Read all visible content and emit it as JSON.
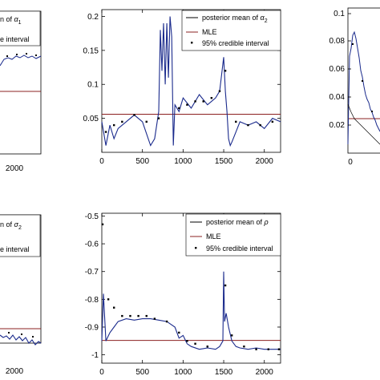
{
  "chart_data": [
    {
      "type": "line",
      "panel": "top-left (cropped)",
      "x_ticks": [
        "2000"
      ],
      "legend_location": "top-right",
      "legend": [
        {
          "label": "posterior mean of α1",
          "label_prefix": "n of ",
          "symbol": "α",
          "subscript": "1",
          "style": "line",
          "color": "#000000"
        },
        {
          "label": "MLE",
          "label_prefix": "",
          "symbol": "",
          "subscript": "",
          "style": "line",
          "color": "#8b2020"
        },
        {
          "label": "95% credible interval",
          "label_prefix": "e interval",
          "symbol": "",
          "subscript": "",
          "style": "marker",
          "color": "#000000"
        }
      ]
    },
    {
      "type": "line",
      "panel": "top-center",
      "xlim": [
        0,
        2200
      ],
      "ylim": [
        0,
        0.21
      ],
      "x_ticks": [
        "0",
        "500",
        "1000",
        "1500",
        "2000"
      ],
      "y_ticks": [
        "0.05",
        "0.1",
        "0.15",
        "0.2"
      ],
      "legend_location": "top-right",
      "legend": [
        {
          "label": "posterior mean of α2",
          "label_prefix": "posterior mean of ",
          "symbol": "α",
          "subscript": "2",
          "style": "line",
          "color": "#000000"
        },
        {
          "label": "MLE",
          "label_prefix": "MLE",
          "symbol": "",
          "subscript": "",
          "style": "line",
          "color": "#8b2020"
        },
        {
          "label": "95% credible interval",
          "label_prefix": "95% credible interval",
          "symbol": "",
          "subscript": "",
          "style": "marker",
          "color": "#000000"
        }
      ],
      "series": [
        {
          "name": "posterior mean of α2",
          "color": "#1a2a8c",
          "x": [
            0,
            50,
            100,
            150,
            200,
            300,
            400,
            500,
            600,
            650,
            700,
            720,
            740,
            760,
            780,
            800,
            820,
            840,
            860,
            880,
            900,
            950,
            1000,
            1100,
            1200,
            1300,
            1400,
            1450,
            1480,
            1500,
            1520,
            1540,
            1560,
            1580,
            1600,
            1650,
            1700,
            1800,
            1900,
            2000,
            2100,
            2200
          ],
          "y": [
            0.045,
            0.01,
            0.04,
            0.02,
            0.035,
            0.045,
            0.055,
            0.045,
            0.01,
            0.02,
            0.06,
            0.18,
            0.12,
            0.19,
            0.1,
            0.19,
            0.11,
            0.2,
            0.17,
            0.01,
            0.07,
            0.06,
            0.08,
            0.065,
            0.085,
            0.07,
            0.08,
            0.09,
            0.12,
            0.14,
            0.09,
            0.06,
            0.02,
            0.01,
            0.015,
            0.03,
            0.045,
            0.04,
            0.045,
            0.035,
            0.05,
            0.045
          ]
        },
        {
          "name": "MLE",
          "color": "#8b2020",
          "x": [
            0,
            2200
          ],
          "y": [
            0.056,
            0.056
          ]
        }
      ],
      "intervals_x": [
        50,
        150,
        250,
        400,
        550,
        700,
        950,
        1050,
        1150,
        1250,
        1350,
        1450,
        1520,
        1650,
        1800,
        1950,
        2100
      ],
      "intervals_y": [
        0.03,
        0.04,
        0.045,
        0.055,
        0.045,
        0.05,
        0.065,
        0.07,
        0.075,
        0.075,
        0.08,
        0.09,
        0.12,
        0.045,
        0.04,
        0.04,
        0.045
      ]
    },
    {
      "type": "line",
      "panel": "top-right (cropped)",
      "y_ticks": [
        "0.02",
        "0.04",
        "0.06",
        "0.08",
        "0.1"
      ],
      "x_ticks": [
        "0"
      ]
    },
    {
      "type": "line",
      "panel": "bottom-left (cropped)",
      "x_ticks": [
        "2000"
      ],
      "legend_location": "top-right",
      "legend": [
        {
          "label": "posterior mean of σ2",
          "label_prefix": "n of ",
          "symbol": "σ",
          "subscript": "2",
          "style": "line",
          "color": "#000000"
        },
        {
          "label": "MLE",
          "label_prefix": "",
          "symbol": "",
          "subscript": "",
          "style": "line",
          "color": "#8b2020"
        },
        {
          "label": "95% credible interval",
          "label_prefix": "e interval",
          "symbol": "",
          "subscript": "",
          "style": "marker",
          "color": "#000000"
        }
      ]
    },
    {
      "type": "line",
      "panel": "bottom-center",
      "xlim": [
        0,
        2200
      ],
      "ylim": [
        -1.03,
        -0.49
      ],
      "x_ticks": [
        "0",
        "500",
        "1000",
        "1500",
        "2000"
      ],
      "y_ticks": [
        "-0.5",
        "-0.6",
        "-0.7",
        "-0.8",
        "-0.9",
        "-1"
      ],
      "legend_location": "top-right",
      "legend": [
        {
          "label": "posterior mean of ρ",
          "label_prefix": "posterior mean of ",
          "symbol": "ρ",
          "subscript": "",
          "style": "line",
          "color": "#000000"
        },
        {
          "label": "MLE",
          "label_prefix": "MLE",
          "symbol": "",
          "subscript": "",
          "style": "line",
          "color": "#8b2020"
        },
        {
          "label": "95% credible interval",
          "label_prefix": "95% credible interval",
          "symbol": "",
          "subscript": "",
          "style": "marker",
          "color": "#000000"
        }
      ],
      "series": [
        {
          "name": "posterior mean of ρ",
          "color": "#1a2a8c",
          "x": [
            0,
            20,
            50,
            100,
            150,
            200,
            300,
            400,
            500,
            600,
            700,
            800,
            900,
            950,
            1000,
            1050,
            1100,
            1200,
            1300,
            1400,
            1450,
            1490,
            1500,
            1510,
            1530,
            1560,
            1600,
            1650,
            1700,
            1800,
            1900,
            2000,
            2100,
            2200
          ],
          "y": [
            -0.95,
            -0.78,
            -0.95,
            -0.92,
            -0.9,
            -0.88,
            -0.87,
            -0.875,
            -0.87,
            -0.87,
            -0.875,
            -0.88,
            -0.9,
            -0.94,
            -0.93,
            -0.96,
            -0.97,
            -0.98,
            -0.975,
            -0.98,
            -0.97,
            -0.95,
            -0.7,
            -0.88,
            -0.85,
            -0.9,
            -0.95,
            -0.97,
            -0.975,
            -0.98,
            -0.975,
            -0.98,
            -0.98,
            -0.98
          ]
        },
        {
          "name": "MLE",
          "color": "#8b2020",
          "x": [
            0,
            2200
          ],
          "y": [
            -0.948,
            -0.948
          ]
        }
      ],
      "intervals_x": [
        10,
        80,
        150,
        250,
        350,
        450,
        550,
        650,
        800,
        950,
        1050,
        1150,
        1300,
        1520,
        1600,
        1750,
        1900,
        2050,
        2180
      ],
      "intervals_y": [
        -0.53,
        -0.8,
        -0.83,
        -0.86,
        -0.86,
        -0.86,
        -0.86,
        -0.87,
        -0.88,
        -0.92,
        -0.95,
        -0.96,
        -0.97,
        -0.75,
        -0.93,
        -0.97,
        -0.98,
        -0.98,
        -0.98
      ]
    }
  ]
}
